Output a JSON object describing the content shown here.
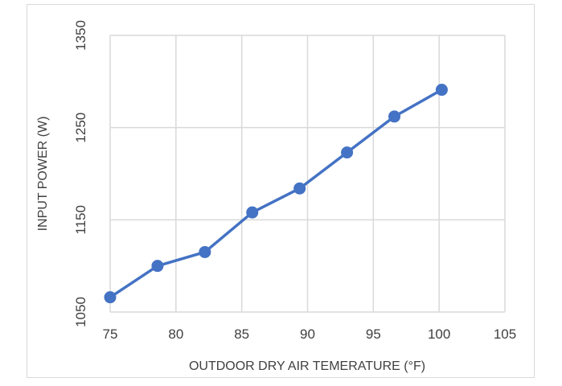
{
  "chart_data": {
    "type": "line",
    "title": "",
    "xlabel": "OUTDOOR DRY AIR TEMERATURE (°F)",
    "ylabel": "INPUT POWER (W)",
    "xlim": [
      75,
      105
    ],
    "ylim": [
      1050,
      1350
    ],
    "xticks": [
      75,
      80,
      85,
      90,
      95,
      100,
      105
    ],
    "yticks": [
      1050,
      1150,
      1250,
      1350
    ],
    "grid": true,
    "legend": "none",
    "series": [
      {
        "color": "#4472c4",
        "marker": "circle",
        "x": [
          75,
          78.6,
          82.2,
          85.8,
          89.4,
          93,
          96.6,
          100.2
        ],
        "y": [
          1066,
          1100,
          1115,
          1158,
          1184,
          1223,
          1262,
          1291
        ]
      }
    ]
  }
}
